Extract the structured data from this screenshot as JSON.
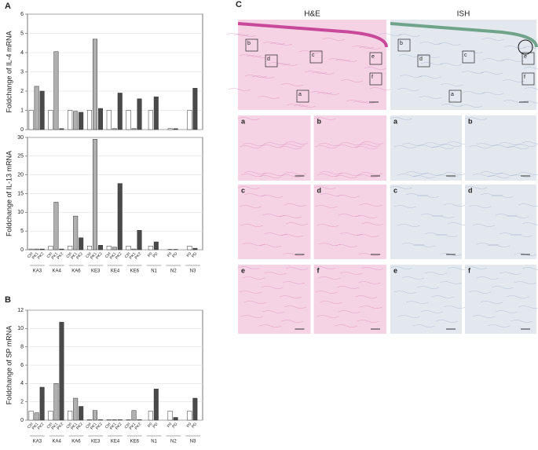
{
  "panel_labels": [
    "A",
    "B",
    "C"
  ],
  "chart_data": [
    {
      "type": "grouped_bar",
      "ylabel": "Foldchange of IL-4 mRNA",
      "ylim": [
        0,
        6
      ],
      "yticks": [
        0,
        1,
        2,
        3,
        4,
        5,
        6
      ],
      "grid": true,
      "groups": [
        {
          "name": "KA3",
          "labels": [
            "Ctrl",
            "PK1",
            "PK2"
          ],
          "values": [
            1,
            2.25,
            2.0
          ],
          "colors": [
            "#ffffff",
            "#b0b0b0",
            "#4a4a4a"
          ]
        },
        {
          "name": "KA4",
          "labels": [
            "Ctrl",
            "PK1",
            "PK2"
          ],
          "values": [
            1,
            4.05,
            0.05
          ],
          "colors": [
            "#ffffff",
            "#b0b0b0",
            "#4a4a4a"
          ]
        },
        {
          "name": "KA6",
          "labels": [
            "Ctrl",
            "PK1",
            "PK2"
          ],
          "values": [
            1,
            0.95,
            0.9
          ],
          "colors": [
            "#ffffff",
            "#b0b0b0",
            "#4a4a4a"
          ]
        },
        {
          "name": "KE3",
          "labels": [
            "Ctrl",
            "PK1",
            "PK2"
          ],
          "values": [
            1,
            4.7,
            1.1
          ],
          "colors": [
            "#ffffff",
            "#b0b0b0",
            "#4a4a4a"
          ]
        },
        {
          "name": "KE4",
          "labels": [
            "Ctrl",
            "PK1",
            "PK2"
          ],
          "values": [
            1,
            0.05,
            1.9
          ],
          "colors": [
            "#ffffff",
            "#b0b0b0",
            "#4a4a4a"
          ]
        },
        {
          "name": "KE6",
          "labels": [
            "Ctrl",
            "PK1",
            "PK2"
          ],
          "values": [
            1,
            0.05,
            1.6
          ],
          "colors": [
            "#ffffff",
            "#b0b0b0",
            "#4a4a4a"
          ]
        },
        {
          "name": "N1",
          "labels": [
            "P0",
            "PD"
          ],
          "values": [
            1,
            1.7
          ],
          "colors": [
            "#ffffff",
            "#4a4a4a"
          ]
        },
        {
          "name": "N2",
          "labels": [
            "P0",
            "PD"
          ],
          "values": [
            0.05,
            0.05
          ],
          "colors": [
            "#ffffff",
            "#4a4a4a"
          ]
        },
        {
          "name": "N3",
          "labels": [
            "P0",
            "PD"
          ],
          "values": [
            1,
            2.15
          ],
          "colors": [
            "#ffffff",
            "#4a4a4a"
          ]
        }
      ]
    },
    {
      "type": "grouped_bar",
      "ylabel": "Foldchange of IL-13 mRNA",
      "ylim": [
        0,
        30
      ],
      "yticks": [
        0,
        5,
        10,
        15,
        20,
        25,
        30
      ],
      "grid": true,
      "groups": [
        {
          "name": "KA3",
          "labels": [
            "Ctrl",
            "PK1",
            "PK2"
          ],
          "values": [
            0.2,
            0.2,
            0.2
          ],
          "colors": [
            "#ffffff",
            "#b0b0b0",
            "#4a4a4a"
          ]
        },
        {
          "name": "KA4",
          "labels": [
            "Ctrl",
            "PK1",
            "PK2"
          ],
          "values": [
            1,
            12.7,
            0.2
          ],
          "colors": [
            "#ffffff",
            "#b0b0b0",
            "#4a4a4a"
          ]
        },
        {
          "name": "KA6",
          "labels": [
            "Ctrl",
            "PK1",
            "PK2"
          ],
          "values": [
            1,
            9,
            3.2
          ],
          "colors": [
            "#ffffff",
            "#b0b0b0",
            "#4a4a4a"
          ]
        },
        {
          "name": "KE3",
          "labels": [
            "Ctrl",
            "PK1",
            "PK2"
          ],
          "values": [
            1,
            29.5,
            1.2
          ],
          "colors": [
            "#ffffff",
            "#b0b0b0",
            "#4a4a4a"
          ]
        },
        {
          "name": "KE4",
          "labels": [
            "Ctrl",
            "PK1",
            "PK2"
          ],
          "values": [
            1,
            0.7,
            17.7
          ],
          "colors": [
            "#ffffff",
            "#b0b0b0",
            "#4a4a4a"
          ]
        },
        {
          "name": "KE6",
          "labels": [
            "Ctrl",
            "PK1",
            "PK2"
          ],
          "values": [
            1,
            0.2,
            5.2
          ],
          "colors": [
            "#ffffff",
            "#b0b0b0",
            "#4a4a4a"
          ]
        },
        {
          "name": "N1",
          "labels": [
            "P0",
            "PD"
          ],
          "values": [
            1,
            2.1
          ],
          "colors": [
            "#ffffff",
            "#4a4a4a"
          ]
        },
        {
          "name": "N2",
          "labels": [
            "P0",
            "PD"
          ],
          "values": [
            0.1,
            0.1
          ],
          "colors": [
            "#ffffff",
            "#4a4a4a"
          ]
        },
        {
          "name": "N3",
          "labels": [
            "P0",
            "PD"
          ],
          "values": [
            1,
            0.4
          ],
          "colors": [
            "#ffffff",
            "#4a4a4a"
          ]
        }
      ]
    },
    {
      "type": "grouped_bar",
      "ylabel": "Foldchange of SP mRNA",
      "ylim": [
        0,
        12
      ],
      "yticks": [
        0,
        2,
        4,
        6,
        8,
        10,
        12
      ],
      "grid": true,
      "groups": [
        {
          "name": "KA3",
          "labels": [
            "Ctrl",
            "PK1",
            "PK2"
          ],
          "values": [
            1,
            0.8,
            3.6
          ],
          "colors": [
            "#ffffff",
            "#b0b0b0",
            "#4a4a4a"
          ]
        },
        {
          "name": "KA4",
          "labels": [
            "Ctrl",
            "PK1",
            "PK2"
          ],
          "values": [
            1,
            4.0,
            10.7
          ],
          "colors": [
            "#ffffff",
            "#b0b0b0",
            "#4a4a4a"
          ]
        },
        {
          "name": "KA6",
          "labels": [
            "Ctrl",
            "PK1",
            "PK2"
          ],
          "values": [
            1,
            2.4,
            1.5
          ],
          "colors": [
            "#ffffff",
            "#b0b0b0",
            "#4a4a4a"
          ]
        },
        {
          "name": "KE3",
          "labels": [
            "Ctrl",
            "PK1",
            "PK2"
          ],
          "values": [
            0.05,
            1.05,
            0.05
          ],
          "colors": [
            "#ffffff",
            "#b0b0b0",
            "#4a4a4a"
          ]
        },
        {
          "name": "KE4",
          "labels": [
            "Ctrl",
            "PK1",
            "PK2"
          ],
          "values": [
            0.05,
            0.05,
            0.05
          ],
          "colors": [
            "#ffffff",
            "#b0b0b0",
            "#4a4a4a"
          ]
        },
        {
          "name": "KE6",
          "labels": [
            "Ctrl",
            "PK1",
            "PK2"
          ],
          "values": [
            0.05,
            1.05,
            0.05
          ],
          "colors": [
            "#ffffff",
            "#b0b0b0",
            "#4a4a4a"
          ]
        },
        {
          "name": "N1",
          "labels": [
            "P0",
            "PD"
          ],
          "values": [
            1,
            3.4
          ],
          "colors": [
            "#ffffff",
            "#4a4a4a"
          ]
        },
        {
          "name": "N2",
          "labels": [
            "P0",
            "PD"
          ],
          "values": [
            1,
            0.3
          ],
          "colors": [
            "#ffffff",
            "#4a4a4a"
          ]
        },
        {
          "name": "N3",
          "labels": [
            "P0",
            "PD"
          ],
          "values": [
            1,
            2.4
          ],
          "colors": [
            "#ffffff",
            "#4a4a4a"
          ]
        }
      ]
    }
  ],
  "panel_c": {
    "columns": [
      "H&E",
      "ISH"
    ],
    "overview_boxes": [
      "b",
      "d",
      "c",
      "e",
      "f",
      "a"
    ],
    "tiles": [
      "a",
      "b",
      "c",
      "d",
      "e",
      "f"
    ]
  }
}
